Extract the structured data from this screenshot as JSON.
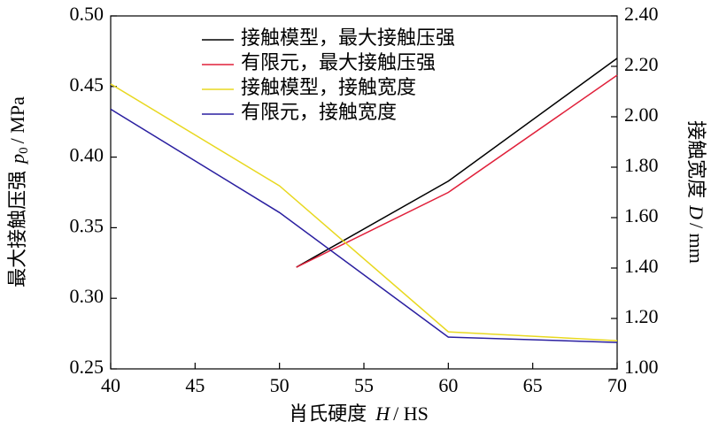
{
  "chart_data": {
    "type": "line",
    "x_label": {
      "text": "肖氏硬度",
      "symbol": "H",
      "unit": "/ HS"
    },
    "y_label": {
      "text": "最大接触压强",
      "symbol": "p",
      "subscript": "0",
      "unit": "/ MPa"
    },
    "y2_label": {
      "text": "接触宽度",
      "symbol": "D",
      "unit": "/ mm"
    },
    "xlim": [
      40,
      70
    ],
    "xticks": [
      40,
      45,
      50,
      55,
      60,
      65,
      70
    ],
    "ylim": [
      0.25,
      0.5
    ],
    "yticks": [
      0.25,
      {
        "value": 0.3,
        "label": "0.30"
      },
      0.35,
      {
        "value": 0.4,
        "label": "0.40"
      },
      0.45,
      {
        "value": 0.5,
        "label": "0.50"
      }
    ],
    "y2lim": [
      1.0,
      2.4
    ],
    "y2ticks": [
      {
        "value": 1.0,
        "label": "1.00"
      },
      {
        "value": 1.2,
        "label": "1.20"
      },
      {
        "value": 1.4,
        "label": "1.40"
      },
      {
        "value": 1.6,
        "label": "1.60"
      },
      {
        "value": 1.8,
        "label": "1.80"
      },
      {
        "value": 2.0,
        "label": "2.00"
      },
      {
        "value": 2.2,
        "label": "2.20"
      },
      {
        "value": 2.4,
        "label": "2.40"
      }
    ],
    "legend": "upper center",
    "series": [
      {
        "name": "接触模型，最大接触压强",
        "color": "#000000",
        "x": [
          51,
          60,
          70
        ],
        "values": [
          0.322,
          0.383,
          0.47
        ]
      },
      {
        "name": "有限元，最大接触压强",
        "color": "#e0203a",
        "x": [
          51,
          60,
          70
        ],
        "values": [
          0.322,
          0.375,
          0.458
        ]
      },
      {
        "name": "接触模型，接触宽度",
        "color": "#e8d820",
        "axis": "y2",
        "x": [
          40,
          50,
          60,
          70
        ],
        "values": [
          2.13,
          1.726,
          1.147,
          1.112
        ]
      },
      {
        "name": "有限元，接触宽度",
        "color": "#2a1fa0",
        "axis": "y2",
        "x": [
          40,
          50,
          60,
          70
        ],
        "values": [
          2.03,
          1.62,
          1.126,
          1.105
        ]
      }
    ]
  }
}
